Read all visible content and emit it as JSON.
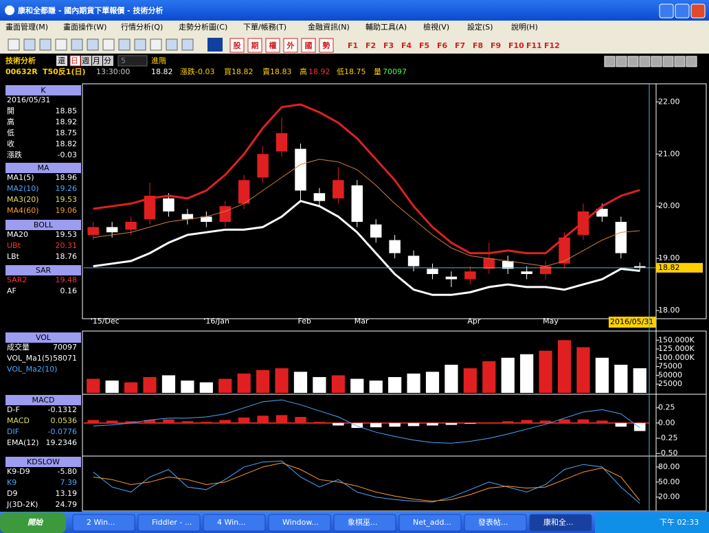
{
  "window": {
    "title": "康和全都賺 - 國內期貨下單報價 - 技術分析"
  },
  "menu": [
    "畫面管理(M)",
    "畫面操作(W)",
    "行情分析(Q)",
    "走勢分析圖(C)",
    "下單/帳務(T)",
    "金融資訊(N)",
    "輔助工具(A)",
    "檢視(V)",
    "設定(S)",
    "說明(H)"
  ],
  "toolbar": {
    "quick": [
      "股",
      "期",
      "權",
      "外",
      "國",
      "勢"
    ],
    "fkeys": [
      "F1",
      "F2",
      "F3",
      "F4",
      "F5",
      "F6",
      "F7",
      "F8",
      "F9",
      "F10",
      "F11",
      "F12"
    ]
  },
  "controls": {
    "title": "技術分析",
    "restore": "還",
    "periods": [
      "日",
      "週",
      "月",
      "分"
    ],
    "minutes": "5",
    "advanced": "進階"
  },
  "quote": {
    "symbol": "00632R",
    "name": "T50反1(日)",
    "time": "13:30:00",
    "price": "18.82",
    "change": "漲跌-0.03",
    "bid": "買18.82",
    "ask": "賣18.83",
    "high_label": "高",
    "high": "18.92",
    "low": "低18.75",
    "volume_label": "量",
    "volume": "70097"
  },
  "info_panel": [
    {
      "title": "K",
      "rows": [
        {
          "label": "2016/05/31"
        },
        {
          "label": "開",
          "value": "18.85"
        },
        {
          "label": "高",
          "value": "18.92"
        },
        {
          "label": "低",
          "value": "18.75"
        },
        {
          "label": "收",
          "value": "18.82"
        },
        {
          "label": "漲跌",
          "value": "-0.03"
        }
      ]
    },
    {
      "title": "MA",
      "rows": [
        {
          "label": "MA1(5)",
          "value": "18.96"
        },
        {
          "label": "MA2(10)",
          "value": "19.26",
          "color": "#4aa8ff"
        },
        {
          "label": "MA3(20)",
          "value": "19.53",
          "color": "#e0e060"
        },
        {
          "label": "MA4(60)",
          "value": "19.06",
          "color": "#ff9933"
        }
      ]
    },
    {
      "title": "BOLL",
      "rows": [
        {
          "label": "MA20",
          "value": "19.53"
        },
        {
          "label": "UBt",
          "value": "20.31",
          "color": "#ff3030"
        },
        {
          "label": "LBt",
          "value": "18.76"
        }
      ]
    },
    {
      "title": "SAR",
      "rows": [
        {
          "label": "SAR2",
          "value": "19.48",
          "color": "#ff3030"
        },
        {
          "label": "AF",
          "value": "0.16"
        }
      ]
    },
    {
      "title": "VOL",
      "rows": [
        {
          "label": "成交量",
          "value": "70097"
        },
        {
          "label": "VOL_Ma1(5)",
          "value": "58071"
        },
        {
          "label": "VOL_Ma2(10)",
          "color": "#4aa8ff"
        }
      ]
    },
    {
      "title": "MACD",
      "rows": [
        {
          "label": "D-F",
          "value": "-0.1312"
        },
        {
          "label": "MACD",
          "value": "0.0536",
          "color": "#e0e060"
        },
        {
          "label": "DIF",
          "value": "-0.0776",
          "color": "#4aa8ff"
        },
        {
          "label": "EMA(12)",
          "value": "19.2346"
        }
      ]
    },
    {
      "title": "KDSLOW",
      "rows": [
        {
          "label": "K9-D9",
          "value": "-5.80"
        },
        {
          "label": "K9",
          "value": "7.39",
          "color": "#4aa8ff"
        },
        {
          "label": "D9",
          "value": "13.19"
        },
        {
          "label": "J(3D-2K)",
          "value": "24.79"
        }
      ]
    }
  ],
  "chart_data": [
    {
      "type": "candlestick",
      "categories": [
        "'15/Dec",
        null,
        null,
        null,
        null,
        null,
        "'16/Jan",
        null,
        null,
        null,
        null,
        "Feb",
        null,
        null,
        "Mar",
        null,
        null,
        null,
        null,
        null,
        "Apr",
        null,
        null,
        null,
        "May",
        null,
        null,
        null,
        null,
        "2016/05/31"
      ],
      "open": [
        19.45,
        19.6,
        19.55,
        19.75,
        20.15,
        19.85,
        19.8,
        19.7,
        20.05,
        20.55,
        21.05,
        21.1,
        20.25,
        20.15,
        20.4,
        19.65,
        19.35,
        19.05,
        18.8,
        18.65,
        18.6,
        18.8,
        18.95,
        18.75,
        18.7,
        18.9,
        19.45,
        19.95,
        19.7,
        18.85
      ],
      "high": [
        19.7,
        19.7,
        19.8,
        20.45,
        20.25,
        19.95,
        19.9,
        20.1,
        20.6,
        21.15,
        21.7,
        21.2,
        20.35,
        20.75,
        20.5,
        19.75,
        19.45,
        19.15,
        18.9,
        18.75,
        18.85,
        19.3,
        19.05,
        18.85,
        18.95,
        19.5,
        20.05,
        20.05,
        19.8,
        18.92
      ],
      "low": [
        19.35,
        19.4,
        19.45,
        19.65,
        19.8,
        19.65,
        19.6,
        19.6,
        19.95,
        20.45,
        20.95,
        20.1,
        20.0,
        20.05,
        19.6,
        19.3,
        19.0,
        18.75,
        18.6,
        18.45,
        18.5,
        18.7,
        18.7,
        18.6,
        18.6,
        18.8,
        19.35,
        19.7,
        19.0,
        18.75
      ],
      "close": [
        19.6,
        19.5,
        19.7,
        20.2,
        19.9,
        19.75,
        19.7,
        20.0,
        20.5,
        21.0,
        21.4,
        20.3,
        20.1,
        20.5,
        19.7,
        19.4,
        19.1,
        18.85,
        18.7,
        18.6,
        18.75,
        19.0,
        18.8,
        18.7,
        18.85,
        19.4,
        19.9,
        19.8,
        19.1,
        18.82
      ],
      "up_color": "#e02020",
      "down_color": "#ffffff",
      "lines": [
        {
          "color": "#e02020",
          "width": 3,
          "values": [
            19.95,
            20.0,
            20.05,
            20.15,
            20.2,
            20.15,
            20.3,
            20.6,
            21.0,
            21.5,
            21.9,
            21.95,
            21.8,
            21.6,
            21.3,
            20.9,
            20.5,
            20.0,
            19.6,
            19.3,
            19.1,
            19.1,
            19.15,
            19.1,
            19.1,
            19.4,
            19.7,
            20.0,
            20.2,
            20.31
          ]
        },
        {
          "color": "#ffffff",
          "width": 3,
          "values": [
            18.85,
            18.9,
            18.95,
            19.1,
            19.3,
            19.45,
            19.5,
            19.55,
            19.55,
            19.6,
            19.8,
            20.1,
            20.0,
            19.8,
            19.5,
            19.1,
            18.7,
            18.4,
            18.3,
            18.3,
            18.35,
            18.45,
            18.5,
            18.45,
            18.45,
            18.4,
            18.5,
            18.6,
            18.8,
            18.76
          ]
        },
        {
          "color": "#d08040",
          "width": 1,
          "values": [
            19.4,
            19.45,
            19.5,
            19.6,
            19.7,
            19.75,
            19.8,
            19.9,
            20.05,
            20.3,
            20.55,
            20.8,
            20.9,
            20.85,
            20.7,
            20.4,
            20.05,
            19.75,
            19.45,
            19.2,
            19.05,
            19.0,
            18.95,
            18.9,
            18.85,
            18.95,
            19.15,
            19.35,
            19.5,
            19.53
          ]
        }
      ],
      "ylim": [
        17.87,
        22.32
      ],
      "yticks": [
        {
          "value": 22,
          "label": "22.00"
        },
        {
          "value": 21,
          "label": "21.00"
        },
        {
          "value": 20,
          "label": "20.00"
        },
        {
          "value": 19,
          "label": "19.00"
        },
        {
          "value": 18,
          "label": "18.00"
        }
      ]
    },
    {
      "type": "bar",
      "values": [
        40000,
        35000,
        30000,
        45000,
        50000,
        35000,
        30000,
        40000,
        55000,
        65000,
        70000,
        60000,
        45000,
        50000,
        40000,
        35000,
        45000,
        55000,
        60000,
        80000,
        70000,
        90000,
        100000,
        110000,
        120000,
        150000,
        130000,
        100000,
        80000,
        70097
      ],
      "ylim": [
        0,
        172000
      ],
      "yticks": [
        {
          "value": 150000,
          "label": "150.000K"
        },
        {
          "value": 125000,
          "label": "125.000K"
        },
        {
          "value": 100000,
          "label": "100.000K"
        },
        75000,
        50000,
        25000
      ]
    },
    {
      "type": "macd",
      "values": [
        0.05,
        0.04,
        0.03,
        0.05,
        0.06,
        0.03,
        0.02,
        0.05,
        0.09,
        0.12,
        0.13,
        0.1,
        0.02,
        -0.04,
        -0.08,
        -0.07,
        -0.06,
        -0.05,
        -0.04,
        -0.03,
        -0.01,
        0.01,
        0.03,
        0.05,
        0.04,
        0.06,
        0.06,
        0.04,
        -0.06,
        -0.1312
      ],
      "color": "#e02020",
      "lines": [
        {
          "color": "#4aa8ff",
          "width": 1,
          "values": [
            -0.05,
            -0.03,
            0.0,
            0.05,
            0.08,
            0.08,
            0.1,
            0.15,
            0.25,
            0.35,
            0.38,
            0.3,
            0.2,
            0.1,
            -0.05,
            -0.15,
            -0.22,
            -0.28,
            -0.32,
            -0.33,
            -0.3,
            -0.25,
            -0.18,
            -0.1,
            -0.02,
            0.08,
            0.18,
            0.22,
            0.15,
            -0.0776
          ]
        }
      ],
      "ylim": [
        -0.52,
        0.45
      ],
      "yticks": [
        {
          "value": 0.25,
          "label": "0.25"
        },
        {
          "value": 0,
          "label": "0.00"
        },
        {
          "value": -0.25,
          "label": "-0.25"
        },
        {
          "value": -0.5,
          "label": "-0.50"
        }
      ]
    },
    {
      "type": "kd",
      "lines": [
        {
          "color": "#4aa8ff",
          "width": 1,
          "values": [
            70,
            40,
            30,
            60,
            75,
            40,
            35,
            55,
            80,
            90,
            92,
            60,
            40,
            55,
            30,
            20,
            15,
            12,
            10,
            20,
            35,
            50,
            40,
            30,
            45,
            75,
            85,
            80,
            40,
            7.39
          ]
        },
        {
          "color": "#ff9933",
          "width": 1,
          "values": [
            60,
            55,
            45,
            50,
            60,
            55,
            45,
            50,
            65,
            80,
            88,
            75,
            55,
            50,
            42,
            30,
            22,
            16,
            12,
            15,
            25,
            38,
            42,
            38,
            40,
            55,
            70,
            78,
            60,
            13.19
          ]
        }
      ],
      "ylim": [
        -5,
        99
      ],
      "yticks": [
        {
          "value": 80,
          "label": "80.00"
        },
        {
          "value": 50,
          "label": "50.00"
        },
        {
          "value": 20,
          "label": "20.00"
        }
      ]
    }
  ],
  "taskbar": {
    "start": "開始",
    "items": [
      "2 Win...",
      "Fiddler - ...",
      "4 Win...",
      "Window...",
      "象棋巫...",
      "Net_add...",
      "發表帖...",
      "康和全..."
    ],
    "clock": "下午 02:33"
  }
}
